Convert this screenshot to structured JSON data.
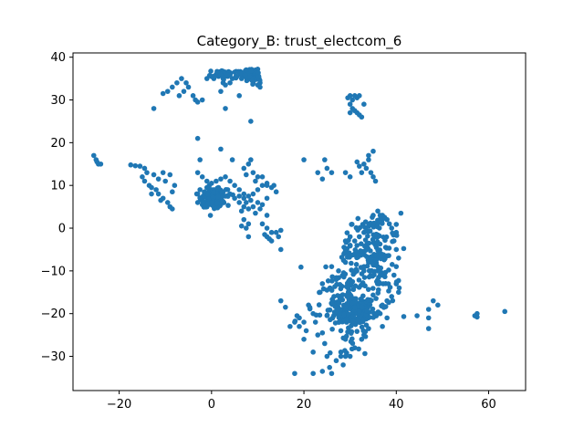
{
  "chart_data": {
    "type": "scatter",
    "title": "Category_B: trust_electcom_6",
    "xlabel": "",
    "ylabel": "",
    "xlim": [
      -30,
      68
    ],
    "ylim": [
      -38,
      41
    ],
    "xticks": [
      -20,
      0,
      20,
      40,
      60
    ],
    "yticks": [
      -30,
      -20,
      -10,
      0,
      10,
      20,
      30,
      40
    ],
    "xtick_labels": [
      "−20",
      "0",
      "20",
      "40",
      "60"
    ],
    "ytick_labels": [
      "−30",
      "−20",
      "−10",
      "0",
      "10",
      "20",
      "30",
      "40"
    ],
    "grid": false,
    "marker_color": "#1f77b4",
    "points": [
      [
        -25.5,
        17
      ],
      [
        -25,
        16
      ],
      [
        -24.5,
        15
      ],
      [
        -24,
        15
      ],
      [
        -24.8,
        15.5
      ],
      [
        -17.5,
        14.8
      ],
      [
        -16.5,
        14.6
      ],
      [
        -15.5,
        14.5
      ],
      [
        -14.5,
        14
      ],
      [
        -14,
        13
      ],
      [
        -15,
        12
      ],
      [
        -14.5,
        11
      ],
      [
        -13.5,
        10
      ],
      [
        -13,
        9.5
      ],
      [
        -12,
        9
      ],
      [
        -11.5,
        8
      ],
      [
        -10.5,
        7
      ],
      [
        -11,
        6.5
      ],
      [
        -9.5,
        6
      ],
      [
        -9,
        5
      ],
      [
        -8.5,
        4.5
      ],
      [
        -10,
        11
      ],
      [
        -9,
        12.5
      ],
      [
        -8,
        10
      ],
      [
        -8.5,
        8.5
      ],
      [
        -10.5,
        13
      ],
      [
        -11.5,
        11.5
      ],
      [
        -12.5,
        12.5
      ],
      [
        -13,
        8
      ],
      [
        -12.5,
        28
      ],
      [
        -10.5,
        31.5
      ],
      [
        -9.5,
        32
      ],
      [
        -8.5,
        33
      ],
      [
        -7.5,
        34
      ],
      [
        -6.5,
        35
      ],
      [
        -5.5,
        34
      ],
      [
        -5,
        33
      ],
      [
        -6,
        32
      ],
      [
        -7,
        31
      ],
      [
        -4,
        31
      ],
      [
        -3.5,
        30
      ],
      [
        -3,
        29.5
      ],
      [
        -2,
        30
      ],
      [
        -1,
        35
      ],
      [
        0,
        35.5
      ],
      [
        1,
        36
      ],
      [
        2,
        36.5
      ],
      [
        3,
        36.5
      ],
      [
        4,
        36
      ],
      [
        5,
        36.5
      ],
      [
        6,
        36.5
      ],
      [
        7,
        36
      ],
      [
        8,
        36.5
      ],
      [
        9,
        36
      ],
      [
        10,
        36
      ],
      [
        0.5,
        35
      ],
      [
        1.5,
        35.5
      ],
      [
        2.5,
        35
      ],
      [
        3.5,
        35.5
      ],
      [
        4.5,
        35
      ],
      [
        5.5,
        35.5
      ],
      [
        6.5,
        35
      ],
      [
        7.5,
        35.5
      ],
      [
        8.5,
        35
      ],
      [
        9.5,
        35.5
      ],
      [
        10.5,
        34
      ],
      [
        9,
        34
      ],
      [
        10,
        33.5
      ],
      [
        10.5,
        33
      ],
      [
        9.5,
        37
      ],
      [
        10,
        37.2
      ],
      [
        8.8,
        36.2
      ],
      [
        9.6,
        34.8
      ],
      [
        10.2,
        35.2
      ],
      [
        9.8,
        36.4
      ],
      [
        8.4,
        37
      ],
      [
        2.5,
        34
      ],
      [
        3,
        33.5
      ],
      [
        4,
        34
      ],
      [
        2,
        32
      ],
      [
        6,
        31
      ],
      [
        3,
        28
      ],
      [
        8.5,
        25
      ],
      [
        -3,
        21
      ],
      [
        2,
        18.5
      ],
      [
        -2.5,
        16
      ],
      [
        4.5,
        16
      ],
      [
        -3,
        13
      ],
      [
        -2,
        12
      ],
      [
        -1,
        11
      ],
      [
        0,
        10.5
      ],
      [
        1,
        11
      ],
      [
        2,
        11.5
      ],
      [
        3,
        12
      ],
      [
        4,
        11
      ],
      [
        5,
        10
      ],
      [
        6,
        9
      ],
      [
        7,
        8
      ],
      [
        8,
        7.5
      ],
      [
        9,
        8
      ],
      [
        10,
        9
      ],
      [
        11,
        10
      ],
      [
        12,
        10
      ],
      [
        -3,
        8
      ],
      [
        -2,
        7
      ],
      [
        -1,
        6.5
      ],
      [
        0,
        6
      ],
      [
        1,
        6.5
      ],
      [
        2,
        7
      ],
      [
        3,
        7.5
      ],
      [
        4,
        8
      ],
      [
        5,
        7
      ],
      [
        6,
        7.5
      ],
      [
        7,
        7
      ],
      [
        -3,
        6
      ],
      [
        -2,
        5.5
      ],
      [
        -1,
        5
      ],
      [
        0,
        5.5
      ],
      [
        1,
        5
      ],
      [
        2,
        6
      ],
      [
        -2.5,
        9
      ],
      [
        -1.5,
        8.5
      ],
      [
        -0.5,
        8
      ],
      [
        0.5,
        9
      ],
      [
        1.5,
        8
      ],
      [
        2.5,
        8.5
      ],
      [
        3.5,
        9
      ],
      [
        -0.5,
        10
      ],
      [
        0.5,
        7.5
      ],
      [
        1.5,
        9.5
      ],
      [
        0,
        9
      ],
      [
        -1,
        9.5
      ],
      [
        -1.8,
        7.5
      ],
      [
        0.8,
        6.2
      ],
      [
        7,
        14
      ],
      [
        8,
        15
      ],
      [
        8.5,
        16
      ],
      [
        9,
        13
      ],
      [
        10,
        12
      ],
      [
        7.5,
        12.5
      ],
      [
        9.5,
        11
      ],
      [
        11,
        12
      ],
      [
        12,
        10.5
      ],
      [
        13,
        9.5
      ],
      [
        14,
        8.5
      ],
      [
        13.5,
        10
      ],
      [
        6,
        6
      ],
      [
        7,
        5
      ],
      [
        8,
        4.5
      ],
      [
        9,
        5
      ],
      [
        10,
        6
      ],
      [
        11,
        5.5
      ],
      [
        12,
        7
      ],
      [
        6.5,
        4
      ],
      [
        8.5,
        6.5
      ],
      [
        10.5,
        4.5
      ],
      [
        7.5,
        6
      ],
      [
        9.5,
        3.5
      ],
      [
        7,
        2
      ],
      [
        8,
        1
      ],
      [
        7.5,
        0
      ],
      [
        12,
        3
      ],
      [
        11,
        1
      ],
      [
        12,
        0
      ],
      [
        13,
        -1
      ],
      [
        12,
        -2
      ],
      [
        13,
        -3
      ],
      [
        14,
        -1
      ],
      [
        15,
        -0.5
      ],
      [
        14.5,
        -2
      ],
      [
        8,
        -2
      ],
      [
        6.5,
        0.5
      ],
      [
        11.5,
        -1.5
      ],
      [
        12.5,
        -2.5
      ],
      [
        15,
        -5
      ],
      [
        20,
        16
      ],
      [
        23,
        13
      ],
      [
        24,
        11.5
      ],
      [
        24.5,
        16
      ],
      [
        25,
        14
      ],
      [
        26,
        13
      ],
      [
        29.5,
        30.5
      ],
      [
        30,
        31
      ],
      [
        30.5,
        30
      ],
      [
        31,
        31
      ],
      [
        31.5,
        30.5
      ],
      [
        32,
        31
      ],
      [
        30,
        29
      ],
      [
        30.5,
        28
      ],
      [
        31,
        27.5
      ],
      [
        30,
        27
      ],
      [
        31.5,
        27
      ],
      [
        32,
        26.5
      ],
      [
        32.5,
        26
      ],
      [
        33,
        29
      ],
      [
        29,
        13
      ],
      [
        30,
        12
      ],
      [
        31.5,
        15.5
      ],
      [
        32,
        14.5
      ],
      [
        33,
        15
      ],
      [
        34,
        16
      ],
      [
        33.5,
        14
      ],
      [
        34.5,
        13
      ],
      [
        35,
        12
      ],
      [
        35.5,
        11
      ],
      [
        34,
        17
      ],
      [
        35,
        18
      ],
      [
        32.5,
        13
      ]
    ],
    "clusters": [
      {
        "cx": 31,
        "cy": -19.5,
        "sx": 2.2,
        "sy": 1.8,
        "n": 170
      },
      {
        "cx": 30.5,
        "cy": -12,
        "sx": 3.2,
        "sy": 2.5,
        "n": 40
      },
      {
        "cx": 35.5,
        "cy": -4,
        "sx": 2.2,
        "sy": 2.8,
        "n": 70
      },
      {
        "cx": 36,
        "cy": -13,
        "sx": 2.5,
        "sy": 3,
        "n": 55
      },
      {
        "cx": 34.5,
        "cy": 1,
        "sx": 2,
        "sy": 1.5,
        "n": 25
      },
      {
        "cx": 30,
        "cy": -6,
        "sx": 1.5,
        "sy": 1.5,
        "n": 25
      },
      {
        "cx": 28,
        "cy": -15,
        "sx": 2,
        "sy": 1.8,
        "n": 20
      },
      {
        "cx": 25.5,
        "cy": -19.5,
        "sx": 2.8,
        "sy": 2.5,
        "n": 25
      },
      {
        "cx": 31,
        "cy": -27,
        "sx": 2.4,
        "sy": 2.2,
        "n": 20
      },
      {
        "cx": 0.5,
        "cy": 7,
        "sx": 1.3,
        "sy": 1.0,
        "n": 130
      },
      {
        "cx": 8,
        "cy": 35.5,
        "sx": 1.3,
        "sy": 1.0,
        "n": 50
      },
      {
        "cx": 3,
        "cy": 36.2,
        "sx": 2.0,
        "sy": 0.5,
        "n": 30
      }
    ],
    "extra_points": [
      [
        15,
        -17
      ],
      [
        16,
        -18.5
      ],
      [
        17,
        -23
      ],
      [
        18,
        -22
      ],
      [
        18.5,
        -20.5
      ],
      [
        19,
        -21
      ],
      [
        20,
        -22
      ],
      [
        20.5,
        -24
      ],
      [
        21,
        -18
      ],
      [
        22,
        -20
      ],
      [
        22.5,
        -22
      ],
      [
        23,
        -25
      ],
      [
        24,
        -24.5
      ],
      [
        24.5,
        -27
      ],
      [
        19,
        -23
      ],
      [
        20,
        -26
      ],
      [
        22,
        -29
      ],
      [
        25,
        -30
      ],
      [
        27,
        -31
      ],
      [
        28,
        -30
      ],
      [
        28.5,
        -32
      ],
      [
        26,
        -34
      ],
      [
        18,
        -34
      ],
      [
        22,
        -34
      ],
      [
        24,
        -33.5
      ],
      [
        28,
        -29
      ],
      [
        29,
        -30
      ],
      [
        30,
        -30
      ],
      [
        23.5,
        -15
      ],
      [
        24,
        -13
      ],
      [
        25,
        -14.5
      ],
      [
        26.5,
        -16
      ],
      [
        27,
        -12
      ],
      [
        27.5,
        -10
      ],
      [
        26,
        -9
      ],
      [
        29,
        -8
      ],
      [
        30,
        -4
      ],
      [
        29,
        -3
      ],
      [
        30,
        -2
      ],
      [
        31,
        -3
      ],
      [
        32,
        -2
      ],
      [
        33,
        -1
      ],
      [
        37,
        3
      ],
      [
        38,
        2
      ],
      [
        38.5,
        1
      ],
      [
        39,
        0
      ],
      [
        40,
        -1
      ],
      [
        41,
        3.5
      ],
      [
        39.5,
        -3
      ],
      [
        40,
        -5
      ],
      [
        40.5,
        -7
      ],
      [
        40,
        -9
      ],
      [
        39.5,
        -11
      ],
      [
        40,
        -13
      ],
      [
        40.5,
        -15
      ],
      [
        39,
        -16
      ],
      [
        38,
        -17
      ],
      [
        37,
        -18
      ],
      [
        36.5,
        -20
      ],
      [
        38,
        -21
      ],
      [
        37,
        -23
      ],
      [
        34,
        -23.5
      ],
      [
        32,
        -22
      ],
      [
        33,
        -25
      ],
      [
        32.5,
        -26
      ],
      [
        31,
        -28
      ],
      [
        29,
        -26
      ],
      [
        28,
        -24
      ],
      [
        44.5,
        -20.5
      ],
      [
        47,
        -19
      ],
      [
        47,
        -21
      ],
      [
        47,
        -23.5
      ],
      [
        48,
        -17
      ],
      [
        49,
        -18
      ],
      [
        57,
        -20.5
      ],
      [
        57.5,
        -20
      ],
      [
        57.5,
        -20.8
      ],
      [
        63.5,
        -19.5
      ],
      [
        36,
        4
      ],
      [
        36.5,
        3
      ],
      [
        37,
        2
      ],
      [
        35,
        3
      ],
      [
        33,
        -9
      ],
      [
        34,
        -8
      ],
      [
        35,
        -8.5
      ],
      [
        33,
        -10
      ],
      [
        36,
        -9
      ],
      [
        36,
        -10
      ],
      [
        37,
        -11
      ]
    ]
  }
}
